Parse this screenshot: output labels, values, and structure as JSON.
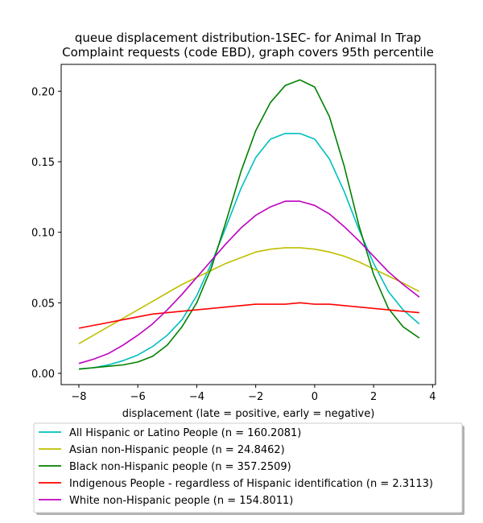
{
  "chart_data": {
    "type": "line",
    "title_lines": [
      "queue displacement distribution-1SEC-  for Animal In Trap",
      "Complaint  requests (code EBD), graph covers 95th percentile"
    ],
    "xlabel": "displacement (late = positive, early = negative)",
    "ylabel": "",
    "xlim": [
      -8.6,
      4.1
    ],
    "ylim": [
      -0.008,
      0.219
    ],
    "x_ticks": [
      -8,
      -6,
      -4,
      -2,
      0,
      2,
      4
    ],
    "x_tick_labels": [
      "−8",
      "−6",
      "−4",
      "−2",
      "0",
      "2",
      "4"
    ],
    "y_ticks": [
      0.0,
      0.05,
      0.1,
      0.15,
      0.2
    ],
    "y_tick_labels": [
      "0.00",
      "0.05",
      "0.10",
      "0.15",
      "0.20"
    ],
    "grid": false,
    "legend_position": "below-plot",
    "x": [
      -8.0,
      -7.5,
      -7.0,
      -6.5,
      -6.0,
      -5.5,
      -5.0,
      -4.5,
      -4.0,
      -3.5,
      -3.0,
      -2.5,
      -2.0,
      -1.5,
      -1.0,
      -0.5,
      0.0,
      0.5,
      1.0,
      1.5,
      2.0,
      2.5,
      3.0,
      3.55
    ],
    "series": [
      {
        "name": "All Hispanic or Latino People (n = 160.2081)",
        "color": "#00bfbf",
        "values": [
          0.003,
          0.004,
          0.006,
          0.009,
          0.013,
          0.019,
          0.027,
          0.038,
          0.055,
          0.078,
          0.104,
          0.131,
          0.153,
          0.166,
          0.17,
          0.17,
          0.166,
          0.152,
          0.129,
          0.102,
          0.078,
          0.058,
          0.045,
          0.035
        ]
      },
      {
        "name": "Asian non-Hispanic people (n = 24.8462)",
        "color": "#bfbf00",
        "values": [
          0.021,
          0.027,
          0.033,
          0.039,
          0.045,
          0.051,
          0.057,
          0.063,
          0.068,
          0.073,
          0.078,
          0.082,
          0.086,
          0.088,
          0.089,
          0.089,
          0.088,
          0.086,
          0.083,
          0.079,
          0.074,
          0.069,
          0.064,
          0.058
        ]
      },
      {
        "name": "Black non-Hispanic people (n = 357.2509)",
        "color": "#008000",
        "values": [
          0.003,
          0.004,
          0.005,
          0.006,
          0.008,
          0.012,
          0.02,
          0.033,
          0.05,
          0.075,
          0.108,
          0.143,
          0.172,
          0.192,
          0.204,
          0.208,
          0.203,
          0.182,
          0.147,
          0.105,
          0.07,
          0.046,
          0.033,
          0.025
        ]
      },
      {
        "name": "Indigenous People - regardless of Hispanic identification (n = 2.3113)",
        "color": "#ff0000",
        "values": [
          0.032,
          0.034,
          0.036,
          0.038,
          0.04,
          0.042,
          0.043,
          0.044,
          0.045,
          0.046,
          0.047,
          0.048,
          0.049,
          0.049,
          0.049,
          0.05,
          0.049,
          0.049,
          0.048,
          0.047,
          0.046,
          0.045,
          0.044,
          0.043
        ]
      },
      {
        "name": "White non-Hispanic people (n = 154.8011)",
        "color": "#bf00bf",
        "values": [
          0.007,
          0.01,
          0.014,
          0.02,
          0.027,
          0.035,
          0.045,
          0.056,
          0.068,
          0.08,
          0.092,
          0.103,
          0.112,
          0.118,
          0.122,
          0.122,
          0.119,
          0.113,
          0.104,
          0.094,
          0.083,
          0.072,
          0.063,
          0.054
        ]
      }
    ]
  }
}
